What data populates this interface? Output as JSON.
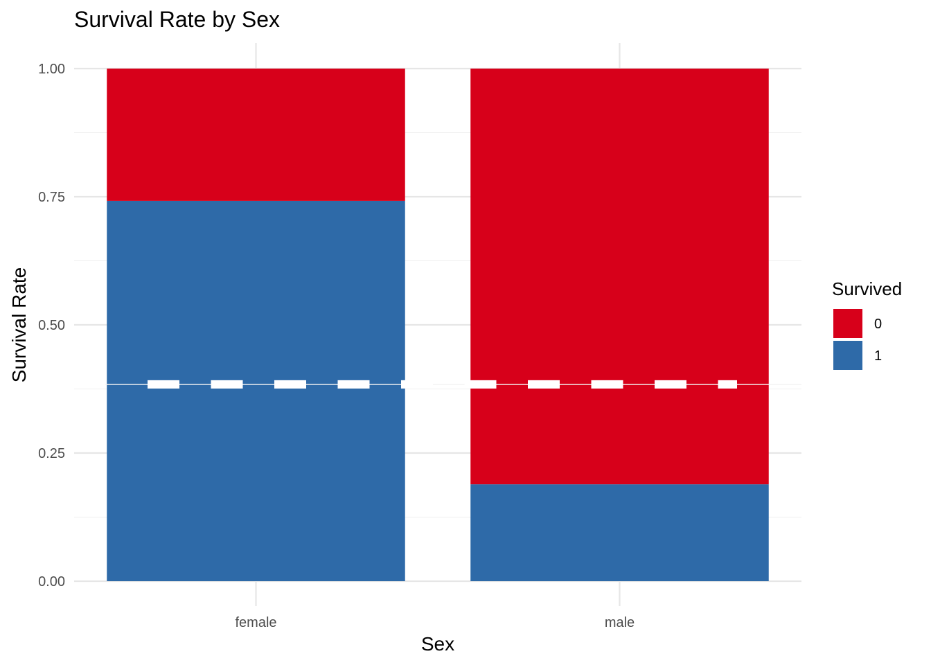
{
  "chart_data": {
    "type": "bar",
    "stacked": true,
    "title": "Survival Rate by Sex",
    "xlabel": "Sex",
    "ylabel": "Survival Rate",
    "categories": [
      "female",
      "male"
    ],
    "series": [
      {
        "name": "0",
        "color": "#d7001a",
        "values": [
          0.258,
          0.811
        ]
      },
      {
        "name": "1",
        "color": "#2e6aa8",
        "values": [
          0.742,
          0.189
        ]
      }
    ],
    "stack_order_bottom_to_top": [
      "1",
      "0"
    ],
    "ylim": [
      0,
      1
    ],
    "yticks": [
      "0.00",
      "0.25",
      "0.50",
      "0.75",
      "1.00"
    ],
    "ytick_values": [
      0,
      0.25,
      0.5,
      0.75,
      1
    ],
    "reference_line": {
      "y": 0.384,
      "style": "dashed",
      "color": "#ffffff"
    },
    "grid": true,
    "legend": {
      "title": "Survived",
      "placement": "right",
      "entries": [
        "0",
        "1"
      ]
    }
  }
}
